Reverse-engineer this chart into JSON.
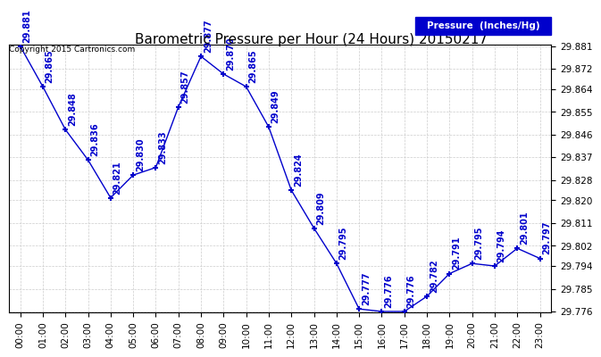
{
  "title": "Barometric Pressure per Hour (24 Hours) 20150217",
  "copyright": "Copyright 2015 Cartronics.com",
  "legend_label": "Pressure  (Inches/Hg)",
  "hours": [
    0,
    1,
    2,
    3,
    4,
    5,
    6,
    7,
    8,
    9,
    10,
    11,
    12,
    13,
    14,
    15,
    16,
    17,
    18,
    19,
    20,
    21,
    22,
    23
  ],
  "hour_labels": [
    "00:00",
    "01:00",
    "02:00",
    "03:00",
    "04:00",
    "05:00",
    "06:00",
    "07:00",
    "08:00",
    "09:00",
    "10:00",
    "11:00",
    "12:00",
    "13:00",
    "14:00",
    "15:00",
    "16:00",
    "17:00",
    "18:00",
    "19:00",
    "20:00",
    "21:00",
    "22:00",
    "23:00"
  ],
  "values": [
    29.881,
    29.865,
    29.848,
    29.836,
    29.821,
    29.83,
    29.833,
    29.857,
    29.877,
    29.87,
    29.865,
    29.849,
    29.824,
    29.809,
    29.795,
    29.777,
    29.776,
    29.776,
    29.782,
    29.791,
    29.795,
    29.794,
    29.801,
    29.797
  ],
  "ylim_min": 29.776,
  "ylim_max": 29.881,
  "yticks": [
    29.776,
    29.785,
    29.794,
    29.802,
    29.811,
    29.82,
    29.828,
    29.837,
    29.846,
    29.855,
    29.864,
    29.872,
    29.881
  ],
  "line_color": "#0000cc",
  "marker_color": "#0000cc",
  "label_color": "#0000cc",
  "background_color": "white",
  "grid_color": "#cccccc",
  "title_color": "black",
  "legend_bg": "#0000cc",
  "legend_text_color": "white",
  "copyright_color": "black",
  "title_fontsize": 11,
  "label_fontsize": 7,
  "tick_fontsize": 7.5,
  "copyright_fontsize": 6.5
}
